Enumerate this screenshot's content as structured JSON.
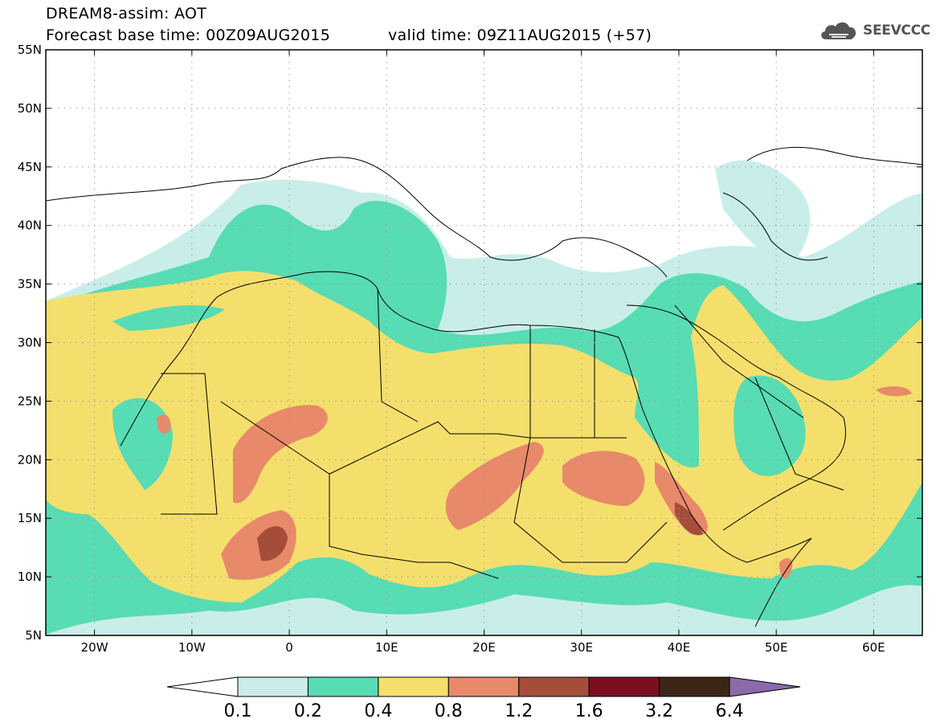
{
  "header": {
    "title_line1": "DREAM8-assim: AOT",
    "base_time": "Forecast base time: 00Z09AUG2015",
    "valid_time": "valid time: 09Z11AUG2015 (+57)",
    "logo_text": "SEEVCCC",
    "logo_icon": "cloud-icon"
  },
  "map": {
    "lon_ticks": [
      "20W",
      "10W",
      "0",
      "10E",
      "20E",
      "30E",
      "40E",
      "50E",
      "60E"
    ],
    "lat_ticks": [
      "55N",
      "50N",
      "45N",
      "40N",
      "35N",
      "30N",
      "25N",
      "20N",
      "15N",
      "10N",
      "5N"
    ],
    "lon_range": [
      -25,
      65
    ],
    "lat_range": [
      5,
      55
    ],
    "gridlines": "dotted"
  },
  "legend": {
    "labels": [
      "0.1",
      "0.2",
      "0.4",
      "0.8",
      "1.2",
      "1.6",
      "3.2",
      "6.4"
    ],
    "colors": [
      "#ffffff",
      "#c9eee9",
      "#58dcb3",
      "#f5df6c",
      "#e8896a",
      "#a54d3b",
      "#7b0f22",
      "#3d2616",
      "#8a6aaa"
    ]
  }
}
